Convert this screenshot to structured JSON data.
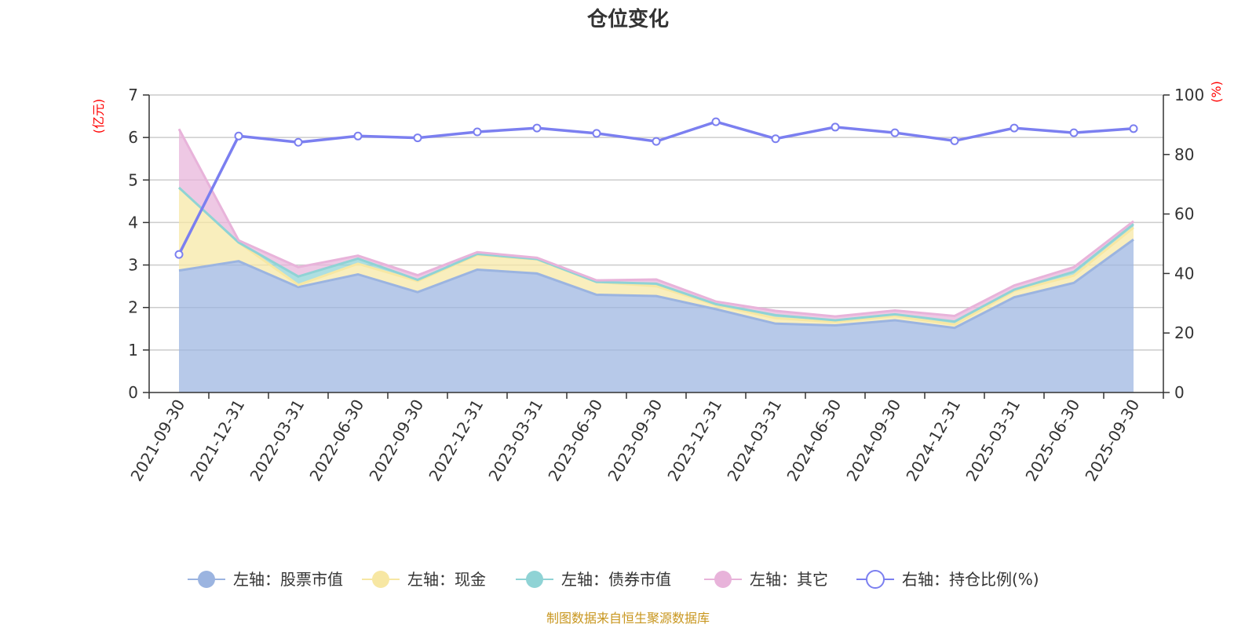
{
  "title": "仓位变化",
  "source": "制图数据来自恒生聚源数据库",
  "colors": {
    "stock": "#9bb4e0",
    "cash": "#f7e7a3",
    "bond": "#8fd3d5",
    "other": "#e8b3da",
    "ratio": "#7b7ff0"
  },
  "chart_data": {
    "type": "area",
    "title": "仓位变化",
    "categories": [
      "2021-09-30",
      "2021-12-31",
      "2022-03-31",
      "2022-06-30",
      "2022-09-30",
      "2022-12-31",
      "2023-03-31",
      "2023-06-30",
      "2023-09-30",
      "2023-12-31",
      "2024-03-31",
      "2024-06-30",
      "2024-09-30",
      "2024-12-31",
      "2025-03-31",
      "2025-06-30",
      "2025-09-30"
    ],
    "left_axis": {
      "unit": "(亿元)",
      "ylim": [
        0,
        7
      ],
      "ticks": [
        "0",
        "1",
        "2",
        "3",
        "4",
        "5",
        "6",
        "7"
      ]
    },
    "right_axis": {
      "unit": "(%)",
      "ylim": [
        0,
        100
      ],
      "ticks": [
        "0",
        "20",
        "40",
        "60",
        "80",
        "100"
      ]
    },
    "stacked": true,
    "series": [
      {
        "name": "左轴：股票市值",
        "axis": "left",
        "values": [
          2.87,
          3.09,
          2.48,
          2.78,
          2.36,
          2.89,
          2.8,
          2.3,
          2.27,
          1.96,
          1.62,
          1.58,
          1.7,
          1.52,
          2.24,
          2.58,
          3.6
        ]
      },
      {
        "name": "左轴：现金",
        "axis": "left",
        "values": [
          1.95,
          0.44,
          0.05,
          0.25,
          0.26,
          0.35,
          0.33,
          0.3,
          0.23,
          0.1,
          0.13,
          0.08,
          0.1,
          0.08,
          0.15,
          0.17,
          0.28
        ]
      },
      {
        "name": "左轴：债券市值",
        "axis": "left",
        "values": [
          0.0,
          0.0,
          0.2,
          0.12,
          0.03,
          0.02,
          0.01,
          0.0,
          0.06,
          0.02,
          0.07,
          0.04,
          0.04,
          0.07,
          0.03,
          0.09,
          0.08
        ]
      },
      {
        "name": "左轴：其它",
        "axis": "left",
        "values": [
          1.38,
          0.05,
          0.22,
          0.07,
          0.11,
          0.04,
          0.03,
          0.04,
          0.1,
          0.06,
          0.1,
          0.09,
          0.09,
          0.13,
          0.1,
          0.11,
          0.07
        ]
      },
      {
        "name": "右轴：持仓比例(%)",
        "axis": "right",
        "type": "line",
        "values": [
          46.4,
          86.2,
          84.1,
          86.2,
          85.6,
          87.6,
          88.9,
          87.1,
          84.4,
          91.0,
          85.3,
          89.2,
          87.3,
          84.6,
          88.9,
          87.3,
          88.7
        ]
      }
    ],
    "legend_position": "bottom"
  }
}
